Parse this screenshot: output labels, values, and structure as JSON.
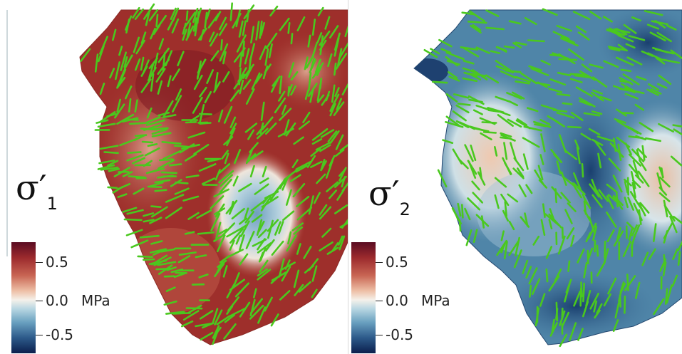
{
  "panels": [
    {
      "id": "left",
      "symbol": "σ",
      "prime": "′",
      "subscript": "1",
      "colorbar": {
        "ticks": [
          "0.5",
          "0.0",
          "-0.5"
        ],
        "unit": "MPa"
      },
      "field_color": "#a23a2f"
    },
    {
      "id": "right",
      "symbol": "σ",
      "prime": "′",
      "subscript": "2",
      "colorbar": {
        "ticks": [
          "0.5",
          "0.0",
          "-0.5"
        ],
        "unit": "MPa"
      },
      "field_color": "#5f8fad"
    }
  ],
  "colors": {
    "vector_glyph": "#4ac81e",
    "high_stress": "#6b1424",
    "low_stress": "#163a68",
    "neutral": "#f5eee4"
  }
}
